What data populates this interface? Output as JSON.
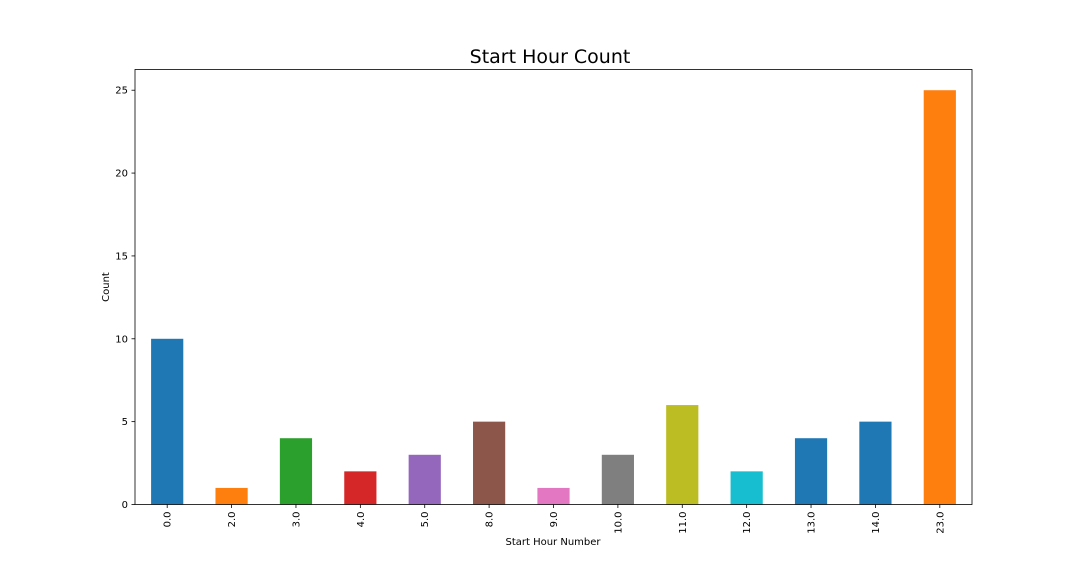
{
  "chart_data": {
    "type": "bar",
    "title": "Start Hour Count",
    "xlabel": "Start Hour Number",
    "ylabel": "Count",
    "categories": [
      "0.0",
      "2.0",
      "3.0",
      "4.0",
      "5.0",
      "8.0",
      "9.0",
      "10.0",
      "11.0",
      "12.0",
      "13.0",
      "14.0",
      "23.0"
    ],
    "values": [
      10,
      1,
      4,
      2,
      3,
      5,
      1,
      3,
      6,
      2,
      4,
      5,
      25
    ],
    "colors": [
      "#1f77b4",
      "#ff7f0e",
      "#2ca02c",
      "#d62728",
      "#9467bd",
      "#8c564b",
      "#e377c2",
      "#7f7f7f",
      "#bcbd22",
      "#17becf",
      "#1f77b4",
      "#1f77b4",
      "#ff7f0e"
    ],
    "ylim": [
      0,
      26.25
    ],
    "yticks": [
      0,
      5,
      10,
      15,
      20,
      25
    ],
    "grid": false,
    "legend": "none"
  }
}
